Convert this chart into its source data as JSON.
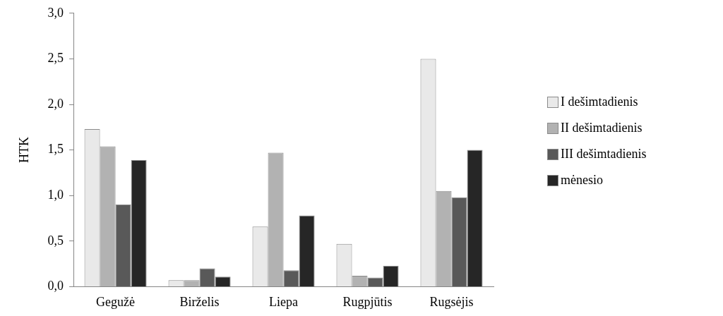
{
  "chart_data": {
    "type": "bar",
    "ylabel": "HTK",
    "categories": [
      "Gegužė",
      "Birželis",
      "Liepa",
      "Rugpjūtis",
      "Rugsėjis"
    ],
    "series": [
      {
        "name": "I dešimtadienis",
        "color": "#e9e9e9",
        "values": [
          1.73,
          0.07,
          0.66,
          0.47,
          2.5
        ]
      },
      {
        "name": "II dešimtadienis",
        "color": "#b2b2b2",
        "values": [
          1.54,
          0.07,
          1.47,
          0.12,
          1.05
        ]
      },
      {
        "name": "III dešimtadienis",
        "color": "#595959",
        "values": [
          0.9,
          0.2,
          0.18,
          0.1,
          0.98
        ]
      },
      {
        "name": "mėnesio",
        "color": "#262626",
        "values": [
          1.39,
          0.11,
          0.78,
          0.23,
          1.5
        ]
      }
    ],
    "ylim": [
      0,
      3
    ],
    "yticks": [
      {
        "value": 0,
        "label": "0,0"
      },
      {
        "value": 0.5,
        "label": "0,5"
      },
      {
        "value": 1,
        "label": "1,0"
      },
      {
        "value": 1.5,
        "label": "1,5"
      },
      {
        "value": 2,
        "label": "2,0"
      },
      {
        "value": 2.5,
        "label": "2,5"
      },
      {
        "value": 3,
        "label": "3,0"
      }
    ],
    "grid": false,
    "legend": "right"
  }
}
